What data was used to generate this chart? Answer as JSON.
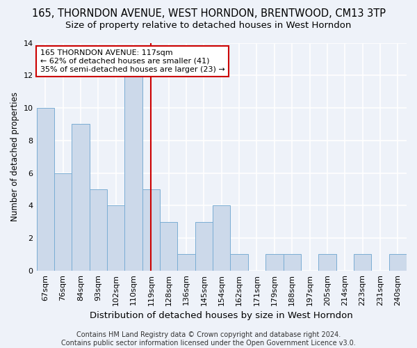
{
  "title": "165, THORNDON AVENUE, WEST HORNDON, BRENTWOOD, CM13 3TP",
  "subtitle": "Size of property relative to detached houses in West Horndon",
  "xlabel": "Distribution of detached houses by size in West Horndon",
  "ylabel": "Number of detached properties",
  "categories": [
    "67sqm",
    "76sqm",
    "84sqm",
    "93sqm",
    "102sqm",
    "110sqm",
    "119sqm",
    "128sqm",
    "136sqm",
    "145sqm",
    "154sqm",
    "162sqm",
    "171sqm",
    "179sqm",
    "188sqm",
    "197sqm",
    "205sqm",
    "214sqm",
    "223sqm",
    "231sqm",
    "240sqm"
  ],
  "values": [
    10,
    6,
    9,
    5,
    4,
    12,
    5,
    3,
    1,
    3,
    4,
    1,
    0,
    1,
    1,
    0,
    1,
    0,
    1,
    0,
    1
  ],
  "bar_color": "#ccd9ea",
  "bar_edge_color": "#7aadd4",
  "ref_line_index": 6,
  "ref_line_color": "#cc0000",
  "annotation_line1": "165 THORNDON AVENUE: 117sqm",
  "annotation_line2": "← 62% of detached houses are smaller (41)",
  "annotation_line3": "35% of semi-detached houses are larger (23) →",
  "annotation_box_edge_color": "#cc0000",
  "ylim": [
    0,
    14
  ],
  "yticks": [
    0,
    2,
    4,
    6,
    8,
    10,
    12,
    14
  ],
  "background_color": "#eef2f9",
  "plot_bg_color": "#eef2f9",
  "grid_color": "#ffffff",
  "title_fontsize": 10.5,
  "subtitle_fontsize": 9.5,
  "xlabel_fontsize": 9.5,
  "ylabel_fontsize": 8.5,
  "tick_fontsize": 8,
  "annotation_fontsize": 8,
  "footer_fontsize": 7,
  "footer": "Contains HM Land Registry data © Crown copyright and database right 2024.\nContains public sector information licensed under the Open Government Licence v3.0."
}
